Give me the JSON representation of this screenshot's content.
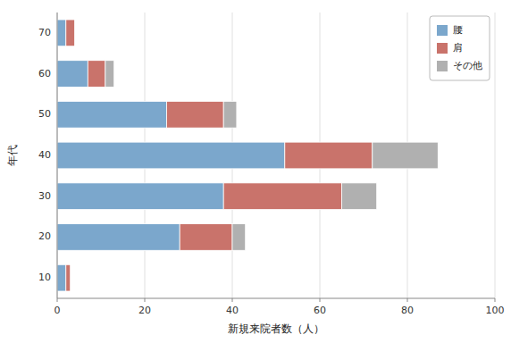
{
  "chart_data": {
    "type": "bar",
    "orientation": "horizontal",
    "stacked": true,
    "categories": [
      "10",
      "20",
      "30",
      "40",
      "50",
      "60",
      "70"
    ],
    "series": [
      {
        "name": "腰",
        "color": "#7BA7CC",
        "values": [
          2,
          28,
          38,
          52,
          25,
          7,
          2
        ]
      },
      {
        "name": "肩",
        "color": "#C9736B",
        "values": [
          1,
          12,
          27,
          20,
          13,
          4,
          2
        ]
      },
      {
        "name": "その他",
        "color": "#B0B0B0",
        "values": [
          0,
          3,
          8,
          15,
          3,
          2,
          0
        ]
      }
    ],
    "xlabel": "新規来院者数（人）",
    "ylabel": "年代",
    "xlim": [
      0,
      100
    ],
    "xticks": [
      0,
      20,
      40,
      60,
      80,
      100
    ],
    "grid": true,
    "legend": "upper right"
  }
}
